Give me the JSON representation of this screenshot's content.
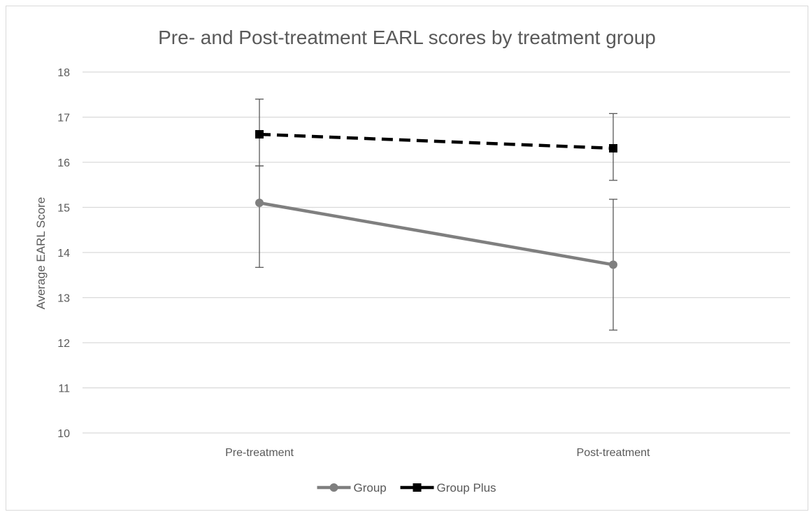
{
  "chart_data": {
    "type": "line",
    "title": "Pre- and Post-treatment EARL scores by treatment group",
    "xlabel": "",
    "ylabel": "Average EARL Score",
    "categories": [
      "Pre-treatment",
      "Post-treatment"
    ],
    "ylim": [
      10,
      18
    ],
    "yticks": [
      10,
      11,
      12,
      13,
      14,
      15,
      16,
      17,
      18
    ],
    "grid": true,
    "legend_position": "bottom",
    "series": [
      {
        "name": "Group",
        "values": [
          15.1,
          13.73
        ],
        "error_low": [
          13.67,
          12.28
        ],
        "error_high": [
          15.92,
          15.18
        ],
        "color": "#7f7f7f",
        "marker": "circle",
        "line_style": "solid"
      },
      {
        "name": "Group Plus",
        "values": [
          16.62,
          16.31
        ],
        "error_low": [
          15.92,
          15.6
        ],
        "error_high": [
          17.4,
          17.08
        ],
        "color": "#000000",
        "marker": "square",
        "line_style": "dashed"
      }
    ]
  }
}
